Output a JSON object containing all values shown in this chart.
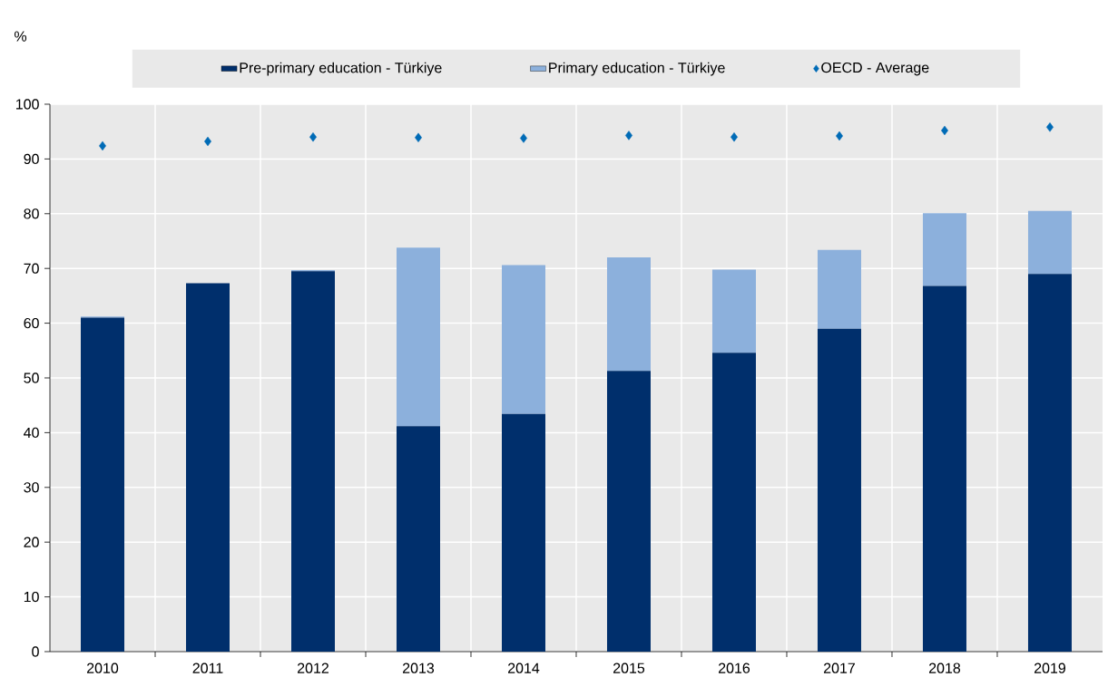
{
  "chart_data": {
    "type": "bar",
    "stacked": true,
    "ylabel": "%",
    "categories": [
      "2010",
      "2011",
      "2012",
      "2013",
      "2014",
      "2015",
      "2016",
      "2017",
      "2018",
      "2019"
    ],
    "series": [
      {
        "name": "Pre-primary education - Türkiye",
        "color": "#002f6c",
        "values": [
          61.0,
          67.3,
          69.5,
          41.2,
          43.4,
          51.3,
          54.6,
          59.0,
          66.8,
          69.0
        ]
      },
      {
        "name": "Primary education - Türkiye",
        "color": "#8cb0dc",
        "values": [
          0.2,
          0.0,
          0.2,
          32.6,
          27.2,
          20.7,
          15.2,
          14.4,
          13.3,
          11.5
        ]
      },
      {
        "name": "OECD - Average",
        "type": "scatter",
        "marker": "diamond",
        "color": "#006bb6",
        "values": [
          92.4,
          93.2,
          94.0,
          93.9,
          93.8,
          94.3,
          94.0,
          94.2,
          95.2,
          95.8
        ]
      }
    ],
    "ylim": [
      0,
      100
    ],
    "yticks": [
      0,
      10,
      20,
      30,
      40,
      50,
      60,
      70,
      80,
      90,
      100
    ],
    "grid": true,
    "legend": "top"
  }
}
